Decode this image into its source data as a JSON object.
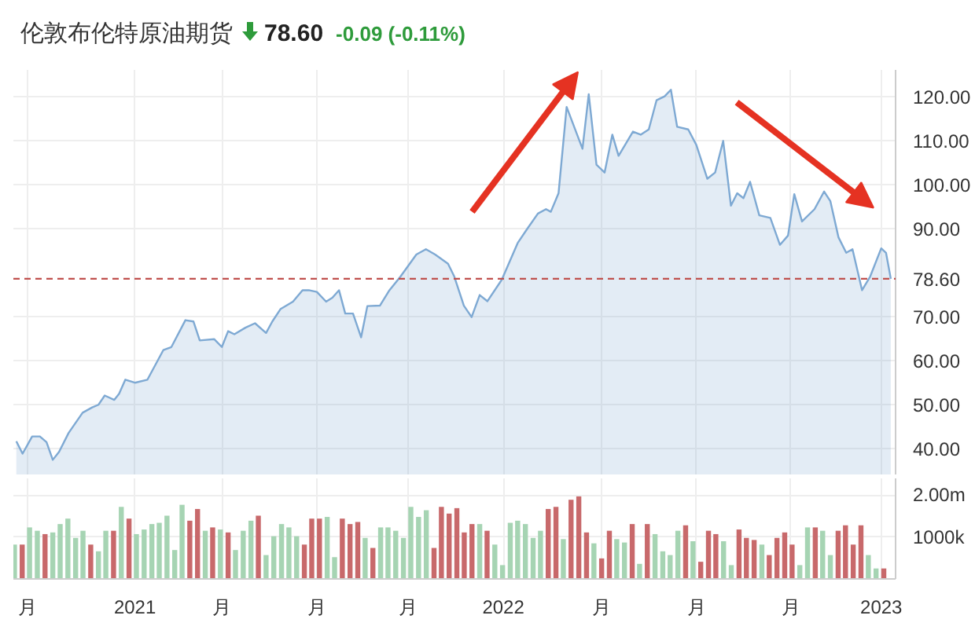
{
  "chart_data": [
    {
      "type": "area",
      "title": "伦敦布伦特原油期货",
      "annotations": [
        "78.60",
        "-0.09 (-0.11%)"
      ],
      "x": [
        2020.678,
        2020.695,
        2020.721,
        2020.742,
        2020.76,
        2020.777,
        2020.794,
        2020.82,
        2020.858,
        2020.884,
        2020.901,
        2020.918,
        2020.944,
        2020.957,
        2020.974,
        2021.0,
        2021.034,
        2021.077,
        2021.099,
        2021.137,
        2021.159,
        2021.176,
        2021.215,
        2021.236,
        2021.253,
        2021.27,
        2021.3,
        2021.326,
        2021.356,
        2021.373,
        2021.395,
        2021.429,
        2021.455,
        2021.472,
        2021.494,
        2021.519,
        2021.536,
        2021.554,
        2021.571,
        2021.592,
        2021.614,
        2021.631,
        2021.665,
        2021.691,
        2021.721,
        2021.764,
        2021.79,
        2021.815,
        2021.85,
        2021.867,
        2021.893,
        2021.914,
        2021.936,
        2021.957,
        2021.996,
        2022.039,
        2022.064,
        2022.094,
        2022.116,
        2022.129,
        2022.15,
        2022.172,
        2022.215,
        2022.232,
        2022.253,
        2022.275,
        2022.296,
        2022.313,
        2022.352,
        2022.373,
        2022.395,
        2022.416,
        2022.438,
        2022.455,
        2022.472,
        2022.502,
        2022.524,
        2022.554,
        2022.575,
        2022.597,
        2022.618,
        2022.635,
        2022.652,
        2022.67,
        2022.695,
        2022.725,
        2022.751,
        2022.773,
        2022.79,
        2022.811,
        2022.845,
        2022.871,
        2022.888,
        2022.91,
        2022.931,
        2022.948,
        2022.974,
        2022.996,
        2023.026,
        2023.039,
        2023.052
      ],
      "series": [
        {
          "color": "#7ea9d3",
          "values": [
            41.7,
            38.9,
            42.8,
            42.8,
            41.5,
            37.5,
            39.3,
            43.6,
            48.2,
            49.4,
            50.0,
            52.1,
            51.1,
            52.5,
            55.7,
            55.0,
            55.7,
            62.4,
            63.1,
            69.2,
            68.9,
            64.6,
            64.9,
            63.1,
            66.7,
            66.0,
            67.5,
            68.5,
            66.3,
            68.9,
            71.7,
            73.4,
            76.0,
            76.0,
            75.6,
            73.4,
            74.3,
            76.0,
            70.7,
            70.7,
            65.3,
            72.4,
            72.5,
            76.0,
            79.1,
            84.1,
            85.3,
            84.1,
            82.0,
            79.1,
            72.5,
            69.9,
            74.9,
            73.5,
            78.4,
            86.7,
            89.8,
            93.4,
            94.4,
            93.8,
            98.0,
            117.6,
            108.1,
            120.5,
            104.5,
            102.7,
            111.3,
            106.5,
            112.0,
            111.3,
            112.5,
            119.1,
            120.0,
            121.5,
            113.1,
            112.5,
            109.0,
            101.3,
            102.7,
            109.9,
            95.2,
            98.0,
            96.9,
            100.6,
            93.0,
            92.4,
            86.3,
            88.4,
            97.8,
            91.6,
            94.4,
            98.4,
            96.2,
            88.0,
            84.5,
            85.3,
            76.0,
            79.1,
            85.5,
            84.5,
            78.6
          ]
        }
      ],
      "xlim": [
        2020.67,
        2023.065
      ],
      "ylim": [
        34,
        126
      ],
      "yticks": [
        {
          "value": 40,
          "label": "40.00"
        },
        {
          "value": 50,
          "label": "50.00"
        },
        {
          "value": 60,
          "label": "60.00"
        },
        {
          "value": 70,
          "label": "70.00"
        },
        {
          "value": 90,
          "label": "90.00"
        },
        {
          "value": 100,
          "label": "100.00"
        },
        {
          "value": 110,
          "label": "110.00"
        },
        {
          "value": 120,
          "label": "120.00"
        }
      ],
      "xticks": [
        {
          "value": 2020.708,
          "label": null
        },
        {
          "value": 2021,
          "label": null
        },
        {
          "value": 2021.236,
          "label": null
        },
        {
          "value": 2021.494,
          "label": null
        },
        {
          "value": 2021.742,
          "label": null
        },
        {
          "value": 2022,
          "label": null
        },
        {
          "value": 2022.266,
          "label": null
        },
        {
          "value": 2022.524,
          "label": null
        },
        {
          "value": 2022.781,
          "label": null
        },
        {
          "value": 2023.026,
          "label": null
        }
      ],
      "ref_lines": [
        {
          "axis": "y",
          "value": 78.6,
          "label": "78.60",
          "color": "#c0504d",
          "line_style": "dashed"
        }
      ],
      "grid": true,
      "tick_labels": "y"
    },
    {
      "type": "bar",
      "x": [
        2020.673,
        2020.694,
        2020.714,
        2020.735,
        2020.756,
        2020.777,
        2020.797,
        2020.818,
        2020.839,
        2020.859,
        2020.88,
        2020.901,
        2020.921,
        2020.942,
        2020.963,
        2020.984,
        2021.004,
        2021.025,
        2021.046,
        2021.066,
        2021.087,
        2021.108,
        2021.128,
        2021.149,
        2021.17,
        2021.191,
        2021.211,
        2021.232,
        2021.253,
        2021.273,
        2021.294,
        2021.315,
        2021.335,
        2021.356,
        2021.377,
        2021.398,
        2021.418,
        2021.439,
        2021.46,
        2021.48,
        2021.501,
        2021.522,
        2021.542,
        2021.563,
        2021.584,
        2021.605,
        2021.625,
        2021.646,
        2021.667,
        2021.687,
        2021.708,
        2021.729,
        2021.749,
        2021.77,
        2021.791,
        2021.812,
        2021.832,
        2021.853,
        2021.874,
        2021.894,
        2021.915,
        2021.936,
        2021.956,
        2021.977,
        2021.998,
        2022.019,
        2022.039,
        2022.06,
        2022.081,
        2022.101,
        2022.122,
        2022.143,
        2022.163,
        2022.184,
        2022.205,
        2022.226,
        2022.246,
        2022.267,
        2022.288,
        2022.308,
        2022.329,
        2022.35,
        2022.37,
        2022.391,
        2022.412,
        2022.433,
        2022.453,
        2022.474,
        2022.495,
        2022.515,
        2022.536,
        2022.557,
        2022.577,
        2022.598,
        2022.619,
        2022.64,
        2022.66,
        2022.681,
        2022.702,
        2022.722,
        2022.743,
        2022.764,
        2022.784,
        2022.805,
        2022.826,
        2022.847,
        2022.867,
        2022.888,
        2022.909,
        2022.929,
        2022.95,
        2022.971,
        2022.991,
        2023.012,
        2023.033
      ],
      "series": [
        {
          "values": [
            820000,
            820000,
            1230000,
            1150000,
            1070000,
            1110000,
            1310000,
            1440000,
            980000,
            1150000,
            820000,
            660000,
            1150000,
            1150000,
            1720000,
            1440000,
            1070000,
            1180000,
            1310000,
            1340000,
            1510000,
            690000,
            1770000,
            1390000,
            1670000,
            1150000,
            1230000,
            1180000,
            1110000,
            690000,
            1150000,
            1390000,
            1510000,
            570000,
            1020000,
            1310000,
            1230000,
            1020000,
            820000,
            1440000,
            1440000,
            1480000,
            520000,
            1440000,
            1310000,
            1360000,
            980000,
            740000,
            1230000,
            1230000,
            1150000,
            980000,
            1720000,
            1480000,
            1640000,
            740000,
            1720000,
            1560000,
            1690000,
            1110000,
            1310000,
            1310000,
            1150000,
            820000,
            330000,
            1340000,
            1390000,
            1310000,
            980000,
            1150000,
            1670000,
            1720000,
            950000,
            1890000,
            1970000,
            1110000,
            850000,
            490000,
            1150000,
            950000,
            870000,
            1310000,
            360000,
            1310000,
            1070000,
            660000,
            570000,
            1150000,
            1280000,
            900000,
            410000,
            1150000,
            1070000,
            900000,
            330000,
            1180000,
            980000,
            930000,
            820000,
            570000,
            980000,
            1110000,
            820000,
            330000,
            1230000,
            1230000,
            1150000,
            570000,
            1150000,
            1280000,
            820000,
            1280000,
            570000,
            250000,
            250000
          ],
          "colors": [
            "#a6d4b3",
            "#c8696b",
            "#a6d4b3",
            "#a6d4b3",
            "#c8696b",
            "#a6d4b3",
            "#a6d4b3",
            "#a6d4b3",
            "#a6d4b3",
            "#a6d4b3",
            "#c8696b",
            "#a6d4b3",
            "#a6d4b3",
            "#c8696b",
            "#a6d4b3",
            "#c8696b",
            "#a6d4b3",
            "#a6d4b3",
            "#a6d4b3",
            "#a6d4b3",
            "#a6d4b3",
            "#a6d4b3",
            "#a6d4b3",
            "#c8696b",
            "#c8696b",
            "#a6d4b3",
            "#c8696b",
            "#a6d4b3",
            "#c8696b",
            "#a6d4b3",
            "#a6d4b3",
            "#a6d4b3",
            "#c8696b",
            "#a6d4b3",
            "#a6d4b3",
            "#a6d4b3",
            "#a6d4b3",
            "#a6d4b3",
            "#c8696b",
            "#c8696b",
            "#c8696b",
            "#a6d4b3",
            "#a6d4b3",
            "#c8696b",
            "#c8696b",
            "#c8696b",
            "#a6d4b3",
            "#c8696b",
            "#a6d4b3",
            "#a6d4b3",
            "#a6d4b3",
            "#a6d4b3",
            "#a6d4b3",
            "#a6d4b3",
            "#a6d4b3",
            "#c8696b",
            "#c8696b",
            "#c8696b",
            "#c8696b",
            "#c8696b",
            "#c8696b",
            "#a6d4b3",
            "#c8696b",
            "#a6d4b3",
            "#a6d4b3",
            "#a6d4b3",
            "#a6d4b3",
            "#a6d4b3",
            "#a6d4b3",
            "#a6d4b3",
            "#c8696b",
            "#c8696b",
            "#a6d4b3",
            "#c8696b",
            "#c8696b",
            "#c8696b",
            "#a6d4b3",
            "#c8696b",
            "#c8696b",
            "#a6d4b3",
            "#a6d4b3",
            "#c8696b",
            "#a6d4b3",
            "#c8696b",
            "#a6d4b3",
            "#a6d4b3",
            "#a6d4b3",
            "#a6d4b3",
            "#c8696b",
            "#a6d4b3",
            "#c8696b",
            "#c8696b",
            "#c8696b",
            "#a6d4b3",
            "#a6d4b3",
            "#c8696b",
            "#c8696b",
            "#c8696b",
            "#a6d4b3",
            "#c8696b",
            "#c8696b",
            "#c8696b",
            "#c8696b",
            "#a6d4b3",
            "#a6d4b3",
            "#c8696b",
            "#a6d4b3",
            "#a6d4b3",
            "#c8696b",
            "#c8696b",
            "#c8696b",
            "#c8696b",
            "#a6d4b3",
            "#a6d4b3",
            "#c8696b"
          ]
        }
      ],
      "xlim": [
        2020.67,
        2023.065
      ],
      "ylim": [
        0,
        2400000
      ],
      "yticks": [
        {
          "value": 1000000,
          "label": "1000k"
        },
        {
          "value": 2000000,
          "label": "2.00m"
        }
      ],
      "xticks": [
        {
          "value": 2020.708,
          "label": "月"
        },
        {
          "value": 2021,
          "label": "2021"
        },
        {
          "value": 2021.236,
          "label": "月"
        },
        {
          "value": 2021.494,
          "label": "月"
        },
        {
          "value": 2021.742,
          "label": "月"
        },
        {
          "value": 2022,
          "label": "2022"
        },
        {
          "value": 2022.266,
          "label": "月"
        },
        {
          "value": 2022.524,
          "label": "月"
        },
        {
          "value": 2022.781,
          "label": "月"
        },
        {
          "value": 2023.026,
          "label": "2023"
        }
      ],
      "grid": true
    }
  ]
}
